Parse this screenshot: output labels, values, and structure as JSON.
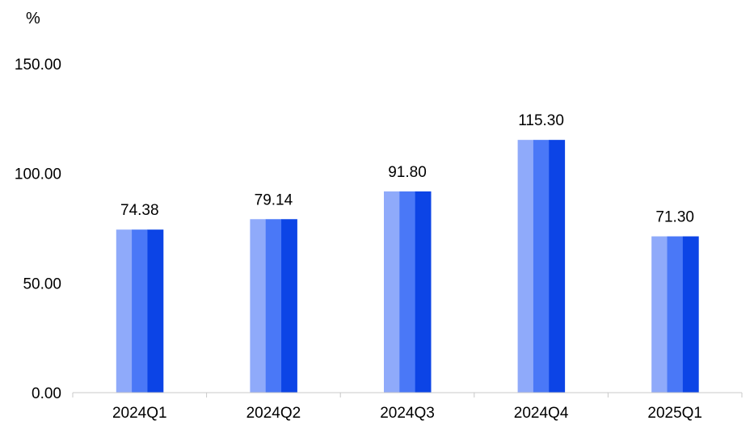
{
  "chart_data": {
    "type": "bar",
    "unit": "%",
    "categories": [
      "2024Q1",
      "2024Q2",
      "2024Q3",
      "2024Q4",
      "2025Q1"
    ],
    "values": [
      74.38,
      79.14,
      91.8,
      115.3,
      71.3
    ],
    "value_labels": [
      "74.38",
      "79.14",
      "91.80",
      "115.30",
      "71.30"
    ],
    "y_ticks": [
      "0.00",
      "50.00",
      "100.00",
      "150.00"
    ],
    "ylim": [
      0,
      150
    ],
    "grid": false,
    "legend": "none",
    "colors": {
      "bar_light": "#8faafa",
      "bar_mid": "#4a78f7",
      "bar_dark": "#0c44e6",
      "axis": "#c8c8c8"
    }
  }
}
